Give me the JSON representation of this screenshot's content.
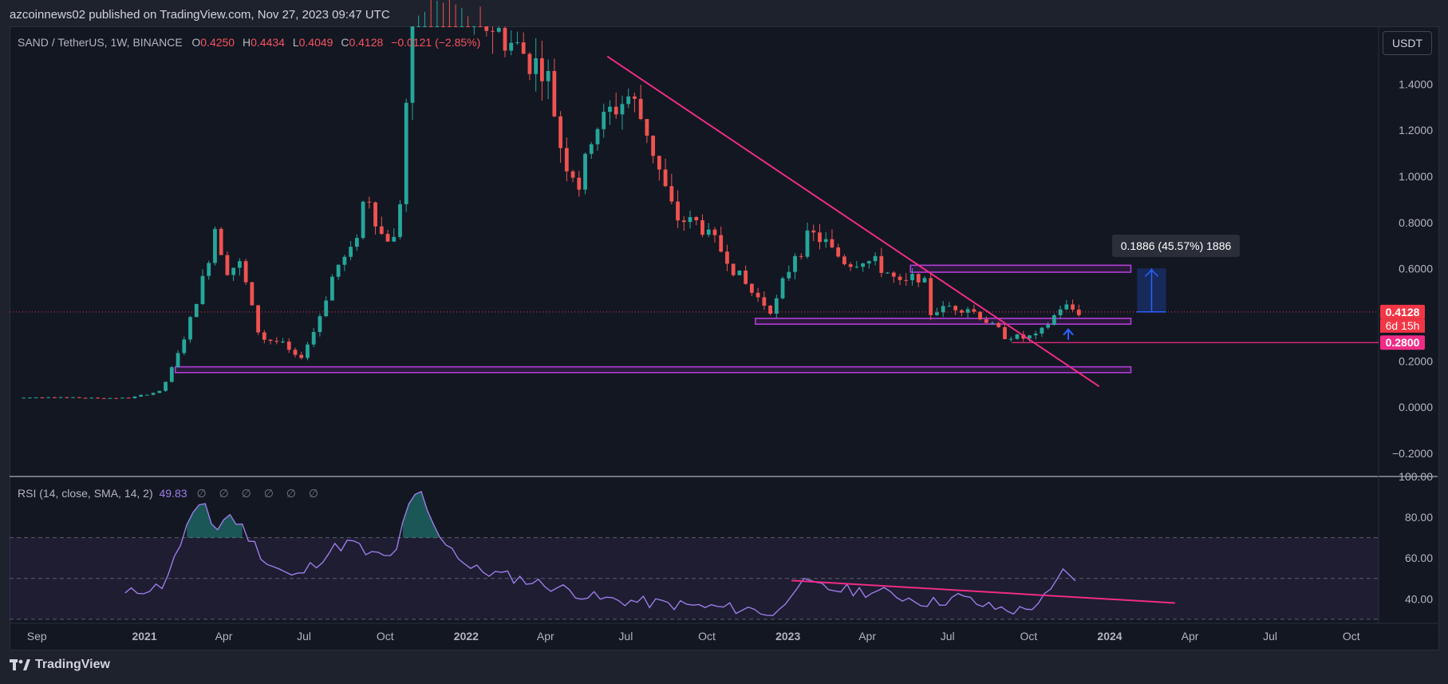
{
  "header": {
    "publisher_line": "azcoinnews02 published on TradingView.com, Nov 27, 2023 09:47 UTC"
  },
  "legend": {
    "symbol": "SAND / TetherUS, 1W, BINANCE",
    "open_label": "O",
    "open": "0.4250",
    "high_label": "H",
    "high": "0.4434",
    "low_label": "L",
    "low": "0.4049",
    "close_label": "C",
    "close": "0.4128",
    "change": "−0.0121 (−2.85%)"
  },
  "currency_button": "USDT",
  "brand": {
    "name": "TradingView",
    "icon": "tradingview-logo-icon"
  },
  "colors": {
    "up": "#26a69a",
    "down": "#ef5350",
    "trendline": "#f02c86",
    "zone": "#b33ed6",
    "rsi": "#9c7ce6",
    "measure": "#2962ff",
    "price_label_bg": "#f23645"
  },
  "chart_data": [
    {
      "type": "candlestick",
      "title": "",
      "interval": "1W",
      "x_range": [
        "2020-08-01",
        "2024-11-01"
      ],
      "ylim": [
        -0.3,
        1.65
      ],
      "y_ticks": [
        "1.4000",
        "1.2000",
        "1.0000",
        "0.8000",
        "0.6000",
        "0.2000",
        "0.0000",
        "−0.2000"
      ],
      "x_tick_labels": [
        "Sep",
        "2021",
        "Apr",
        "Jul",
        "Oct",
        "2022",
        "Apr",
        "Jul",
        "Oct",
        "2023",
        "Apr",
        "Jul",
        "Oct",
        "2024",
        "Apr",
        "Jul",
        "Oct"
      ],
      "x_tick_dates": [
        "2020-09-01",
        "2021-01-01",
        "2021-04-01",
        "2021-07-01",
        "2021-10-01",
        "2022-01-01",
        "2022-04-01",
        "2022-07-01",
        "2022-10-01",
        "2023-01-01",
        "2023-04-01",
        "2023-07-01",
        "2023-10-01",
        "2024-01-01",
        "2024-04-01",
        "2024-07-01",
        "2024-10-01"
      ],
      "grid": false,
      "close_path": [
        [
          "2020-08-10",
          0.04
        ],
        [
          "2020-09-15",
          0.045
        ],
        [
          "2020-11-01",
          0.04
        ],
        [
          "2020-12-15",
          0.04
        ],
        [
          "2021-01-20",
          0.07
        ],
        [
          "2021-02-05",
          0.2
        ],
        [
          "2021-02-20",
          0.35
        ],
        [
          "2021-03-12",
          0.6
        ],
        [
          "2021-03-22",
          0.78
        ],
        [
          "2021-04-05",
          0.6
        ],
        [
          "2021-04-20",
          0.62
        ],
        [
          "2021-05-12",
          0.3
        ],
        [
          "2021-06-05",
          0.28
        ],
        [
          "2021-06-25",
          0.2
        ],
        [
          "2021-07-15",
          0.35
        ],
        [
          "2021-08-05",
          0.6
        ],
        [
          "2021-08-25",
          0.68
        ],
        [
          "2021-09-10",
          0.95
        ],
        [
          "2021-09-25",
          0.75
        ],
        [
          "2021-10-15",
          0.72
        ],
        [
          "2021-10-28",
          1.5
        ],
        [
          "2021-11-10",
          1.9
        ],
        [
          "2022-04-02",
          1.45
        ],
        [
          "2022-04-20",
          1.1
        ],
        [
          "2022-05-10",
          0.95
        ],
        [
          "2022-05-25",
          1.2
        ],
        [
          "2022-06-20",
          1.3
        ],
        [
          "2022-07-05",
          1.35
        ],
        [
          "2022-07-25",
          1.2
        ],
        [
          "2022-08-10",
          1.0
        ],
        [
          "2022-08-25",
          0.82
        ],
        [
          "2022-09-20",
          0.8
        ],
        [
          "2022-10-10",
          0.72
        ],
        [
          "2022-11-01",
          0.6
        ],
        [
          "2022-11-20",
          0.5
        ],
        [
          "2022-12-15",
          0.42
        ],
        [
          "2023-01-10",
          0.68
        ],
        [
          "2023-02-01",
          0.75
        ],
        [
          "2023-02-20",
          0.68
        ],
        [
          "2023-03-10",
          0.62
        ],
        [
          "2023-03-30",
          0.64
        ],
        [
          "2023-04-20",
          0.6
        ],
        [
          "2023-05-10",
          0.52
        ],
        [
          "2023-06-01",
          0.59
        ],
        [
          "2023-06-12",
          0.41
        ],
        [
          "2023-07-05",
          0.44
        ],
        [
          "2023-07-25",
          0.43
        ],
        [
          "2023-08-15",
          0.37
        ],
        [
          "2023-09-05",
          0.31
        ],
        [
          "2023-09-25",
          0.3
        ],
        [
          "2023-10-12",
          0.31
        ],
        [
          "2023-10-25",
          0.37
        ],
        [
          "2023-11-08",
          0.44
        ],
        [
          "2023-11-27",
          0.4128
        ]
      ],
      "annotations": {
        "trendline": [
          [
            "2022-06-10",
            1.52
          ],
          [
            "2023-12-20",
            0.09
          ]
        ],
        "support_zones": [
          {
            "from": "2021-02-05",
            "to": "2024-01-25",
            "low": 0.15,
            "high": 0.175
          },
          {
            "from": "2022-11-25",
            "to": "2024-01-25",
            "low": 0.36,
            "high": 0.385
          },
          {
            "from": "2023-05-20",
            "to": "2024-01-25",
            "low": 0.585,
            "high": 0.615
          }
        ],
        "horizontal_line": {
          "from": "2023-09-12",
          "value": 0.28
        },
        "measure": {
          "from": 0.413,
          "to": 0.6016,
          "label": "0.1886 (45.57%) 1886"
        },
        "price_labels": {
          "last": "0.4128",
          "countdown": "6d 15h",
          "level": "0.2800"
        }
      }
    },
    {
      "type": "line",
      "title": "",
      "ylim": [
        28,
        100
      ],
      "y_ticks": [
        "100.00",
        "80.00",
        "60.00",
        "40.00"
      ],
      "bands": [
        30,
        50,
        70
      ],
      "series": [
        {
          "values": [
            [
              "2020-12-10",
              42
            ],
            [
              "2021-01-01",
              45
            ],
            [
              "2021-01-20",
              46
            ],
            [
              "2021-02-05",
              60
            ],
            [
              "2021-02-20",
              78
            ],
            [
              "2021-03-12",
              87
            ],
            [
              "2021-03-22",
              72
            ],
            [
              "2021-04-05",
              82
            ],
            [
              "2021-04-20",
              76
            ],
            [
              "2021-05-20",
              58
            ],
            [
              "2021-06-20",
              50
            ],
            [
              "2021-07-15",
              58
            ],
            [
              "2021-08-05",
              65
            ],
            [
              "2021-08-25",
              68
            ],
            [
              "2021-09-10",
              62
            ],
            [
              "2021-10-10",
              60
            ],
            [
              "2021-10-28",
              85
            ],
            [
              "2021-11-10",
              93
            ],
            [
              "2021-11-25",
              75
            ],
            [
              "2022-01-05",
              55
            ],
            [
              "2022-03-01",
              50
            ],
            [
              "2022-04-20",
              45
            ],
            [
              "2022-06-01",
              40
            ],
            [
              "2022-08-01",
              38
            ],
            [
              "2022-10-01",
              36
            ],
            [
              "2022-11-20",
              35
            ],
            [
              "2022-12-20",
              32
            ],
            [
              "2023-01-10",
              48
            ],
            [
              "2023-02-15",
              45
            ],
            [
              "2023-04-20",
              43
            ],
            [
              "2023-06-12",
              38
            ],
            [
              "2023-07-15",
              41
            ],
            [
              "2023-08-15",
              36
            ],
            [
              "2023-09-25",
              34
            ],
            [
              "2023-10-25",
              42
            ],
            [
              "2023-11-08",
              53
            ],
            [
              "2023-11-27",
              49.83
            ]
          ]
        }
      ],
      "annotations": {
        "trendline": [
          [
            "2023-01-05",
            49
          ],
          [
            "2024-03-15",
            38
          ]
        ]
      }
    }
  ],
  "rsi_legend": {
    "label": "RSI (14, close, SMA, 14, 2)",
    "value": "49.83",
    "placeholders": "∅ ∅ ∅ ∅ ∅ ∅"
  }
}
